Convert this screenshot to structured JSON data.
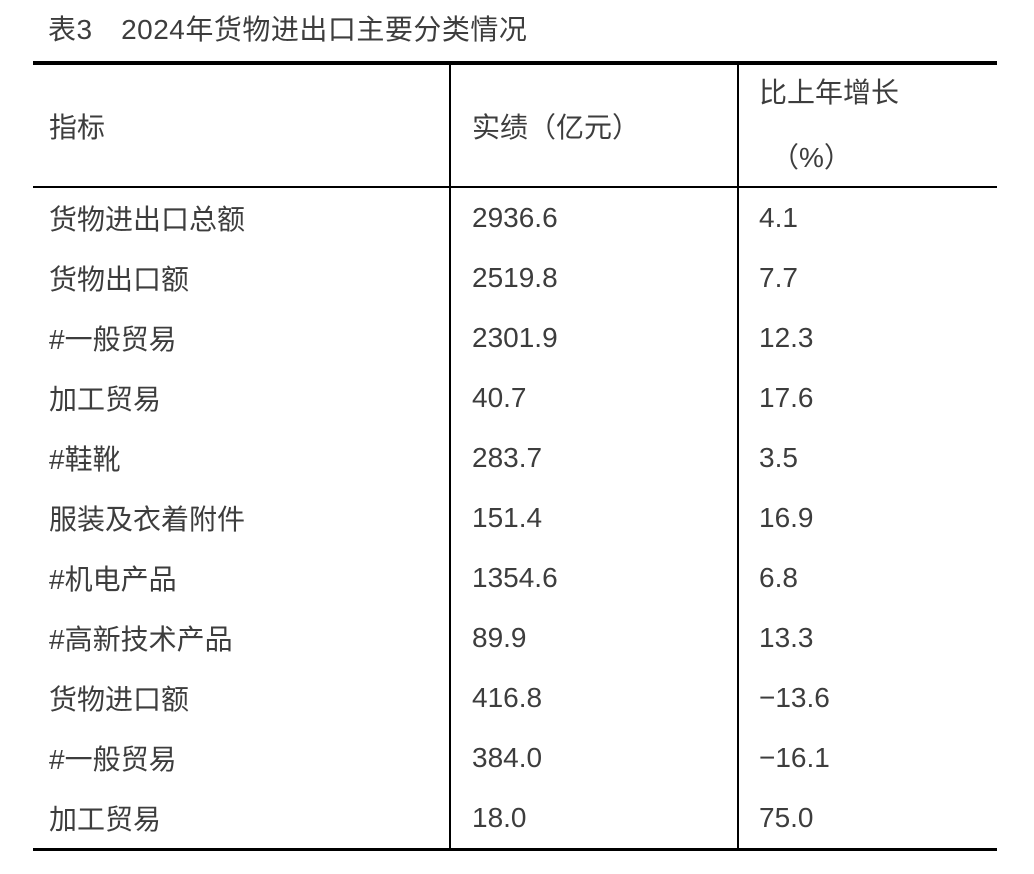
{
  "title": "表3　2024年货物进出口主要分类情况",
  "colors": {
    "text": "#3d3d3d",
    "border": "#000000",
    "background": "#ffffff"
  },
  "table": {
    "headers": {
      "indicator": "指标",
      "value": "实绩（亿元）",
      "growth_line1": "比上年增长",
      "growth_line2": "（%）"
    },
    "rows": [
      {
        "indicator": "货物进出口总额",
        "value": "2936.6",
        "growth": "4.1"
      },
      {
        "indicator": "货物出口额",
        "value": "2519.8",
        "growth": "7.7"
      },
      {
        "indicator": "#一般贸易",
        "value": "2301.9",
        "growth": "12.3"
      },
      {
        "indicator": "加工贸易",
        "value": "40.7",
        "growth": "17.6"
      },
      {
        "indicator": "#鞋靴",
        "value": "283.7",
        "growth": "3.5"
      },
      {
        "indicator": "服装及衣着附件",
        "value": "151.4",
        "growth": "16.9"
      },
      {
        "indicator": "#机电产品",
        "value": "1354.6",
        "growth": "6.8"
      },
      {
        "indicator": "#高新技术产品",
        "value": "89.9",
        "growth": "13.3"
      },
      {
        "indicator": "货物进口额",
        "value": "416.8",
        "growth": "−13.6"
      },
      {
        "indicator": "#一般贸易",
        "value": "384.0",
        "growth": "−16.1"
      },
      {
        "indicator": "加工贸易",
        "value": "18.0",
        "growth": "75.0"
      }
    ]
  }
}
